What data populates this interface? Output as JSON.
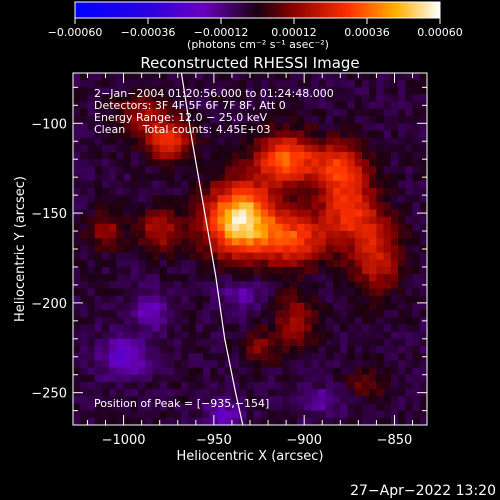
{
  "chart_data": {
    "type": "heatmap",
    "title": "Reconstructed RHESSI Image",
    "xlabel": "Heliocentric X (arcsec)",
    "ylabel": "Heliocentric Y (arcsec)",
    "xlim": [
      -1028,
      -832
    ],
    "ylim": [
      -268,
      -72
    ],
    "x_ticks": [
      -1000,
      -950,
      -900,
      -850
    ],
    "y_ticks": [
      -100,
      -150,
      -200,
      -250
    ],
    "x_tick_labels": [
      "−1000",
      "−950",
      "−900",
      "−850"
    ],
    "y_tick_labels": [
      "−100",
      "−150",
      "−200",
      "−250"
    ],
    "colorbar": {
      "range": [
        -0.0006,
        0.0006
      ],
      "ticks": [
        -0.0006,
        -0.00036,
        -0.00012,
        0.00012,
        0.00036,
        0.0006
      ],
      "tick_labels": [
        "−0.00060",
        "−0.00036",
        "−0.00012",
        "0.00012",
        "0.00036",
        "0.00060"
      ],
      "unit_label": "(photons cm⁻² s⁻¹ asec⁻²)"
    },
    "annotations": [
      "2−Jan−2004 01:20:56.000 to 01:24:48.000",
      "Detectors: 3F 4F 5F 6F 7F 8F, Att 0",
      "Energy Range: 12.0 − 25.0 keV",
      "Clean     Total counts: 4.45E+03"
    ],
    "peak_label": "Position of Peak = [−935,−154]",
    "peak": [
      -935,
      -154
    ],
    "timestamp": "27−Apr−2022 13:20",
    "limb": [
      [
        -968,
        -72
      ],
      [
        -962,
        -110
      ],
      [
        -955,
        -150
      ],
      [
        -949,
        -185
      ],
      [
        -944,
        -220
      ],
      [
        -938,
        -250
      ],
      [
        -934,
        -268
      ]
    ],
    "sources": [
      {
        "x": -935,
        "y": -154,
        "sx": 14,
        "sy": 14,
        "amp": 0.0006
      },
      {
        "x": -910,
        "y": -120,
        "sx": 12,
        "sy": 10,
        "amp": 0.0004
      },
      {
        "x": -880,
        "y": -125,
        "sx": 10,
        "sy": 10,
        "amp": 0.00033
      },
      {
        "x": -875,
        "y": -150,
        "sx": 12,
        "sy": 12,
        "amp": 0.0003
      },
      {
        "x": -905,
        "y": -165,
        "sx": 12,
        "sy": 10,
        "amp": 0.00032
      },
      {
        "x": -860,
        "y": -175,
        "sx": 10,
        "sy": 14,
        "amp": 0.00025
      },
      {
        "x": -975,
        "y": -110,
        "sx": 9,
        "sy": 8,
        "amp": 0.0003
      },
      {
        "x": -990,
        "y": -95,
        "sx": 10,
        "sy": 8,
        "amp": 0.00018
      },
      {
        "x": -980,
        "y": -160,
        "sx": 8,
        "sy": 8,
        "amp": 0.00022
      },
      {
        "x": -1010,
        "y": -160,
        "sx": 7,
        "sy": 7,
        "amp": 0.00018
      },
      {
        "x": -905,
        "y": -210,
        "sx": 8,
        "sy": 10,
        "amp": 0.0002
      },
      {
        "x": -925,
        "y": -225,
        "sx": 7,
        "sy": 7,
        "amp": 0.00015
      },
      {
        "x": -865,
        "y": -245,
        "sx": 8,
        "sy": 6,
        "amp": 0.00012
      },
      {
        "x": -1000,
        "y": -230,
        "sx": 9,
        "sy": 8,
        "amp": -0.0002
      },
      {
        "x": -985,
        "y": -205,
        "sx": 7,
        "sy": 7,
        "amp": -0.00015
      },
      {
        "x": -935,
        "y": -195,
        "sx": 9,
        "sy": 7,
        "amp": -0.00012
      },
      {
        "x": -945,
        "y": -262,
        "sx": 7,
        "sy": 6,
        "amp": -0.00015
      },
      {
        "x": -890,
        "y": -255,
        "sx": 8,
        "sy": 6,
        "amp": -0.0001
      }
    ]
  }
}
